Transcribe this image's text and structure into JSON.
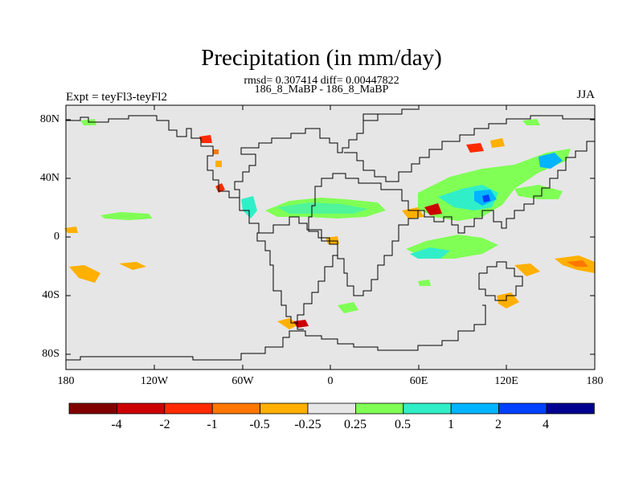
{
  "title": "Precipitation (in mm/day)",
  "stats_line": "rmsd= 0.307414 diff= 0.00447822",
  "subtitle": "186_8_MaBP - 186_8_MaBP",
  "experiment": "Expt = teyFl3-teyFl2",
  "season": "JJA",
  "x_ticks": [
    "180",
    "120W",
    "60W",
    "0",
    "60E",
    "120E",
    "180"
  ],
  "y_ticks": [
    "80N",
    "40N",
    "0",
    "40S",
    "80S"
  ],
  "colorbar": {
    "labels": [
      "-4",
      "-2",
      "-1",
      "-0.5",
      "-0.25",
      "0.25",
      "0.5",
      "1",
      "2",
      "4"
    ],
    "colors": [
      "#800000",
      "#cc0000",
      "#ff2a00",
      "#ff7700",
      "#ffb000",
      "#e6e6e6",
      "#80ff55",
      "#30efc8",
      "#00b4ff",
      "#0040ff",
      "#000090"
    ]
  }
}
